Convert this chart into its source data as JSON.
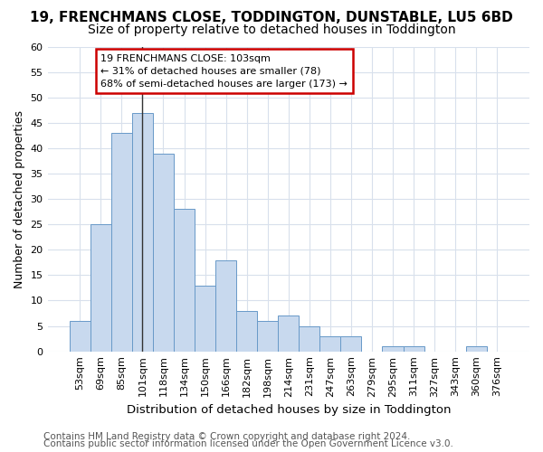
{
  "title": "19, FRENCHMANS CLOSE, TODDINGTON, DUNSTABLE, LU5 6BD",
  "subtitle": "Size of property relative to detached houses in Toddington",
  "xlabel": "Distribution of detached houses by size in Toddington",
  "ylabel": "Number of detached properties",
  "categories": [
    "53sqm",
    "69sqm",
    "85sqm",
    "101sqm",
    "118sqm",
    "134sqm",
    "150sqm",
    "166sqm",
    "182sqm",
    "198sqm",
    "214sqm",
    "231sqm",
    "247sqm",
    "263sqm",
    "279sqm",
    "295sqm",
    "311sqm",
    "327sqm",
    "343sqm",
    "360sqm",
    "376sqm"
  ],
  "values": [
    6,
    25,
    43,
    47,
    39,
    28,
    13,
    18,
    8,
    6,
    7,
    5,
    3,
    3,
    0,
    1,
    1,
    0,
    0,
    1,
    0
  ],
  "bar_color": "#c8d9ee",
  "bar_edge_color": "#6899c8",
  "highlight_index": 3,
  "highlight_line_color": "#333333",
  "annotation_text": "19 FRENCHMANS CLOSE: 103sqm\n← 31% of detached houses are smaller (78)\n68% of semi-detached houses are larger (173) →",
  "annotation_box_color": "#ffffff",
  "annotation_box_edge_color": "#cc0000",
  "ylim": [
    0,
    60
  ],
  "yticks": [
    0,
    5,
    10,
    15,
    20,
    25,
    30,
    35,
    40,
    45,
    50,
    55,
    60
  ],
  "footer1": "Contains HM Land Registry data © Crown copyright and database right 2024.",
  "footer2": "Contains public sector information licensed under the Open Government Licence v3.0.",
  "background_color": "#ffffff",
  "grid_color": "#d8e0ec",
  "title_fontsize": 11,
  "subtitle_fontsize": 10,
  "axis_label_fontsize": 9,
  "tick_fontsize": 8,
  "footer_fontsize": 7.5
}
